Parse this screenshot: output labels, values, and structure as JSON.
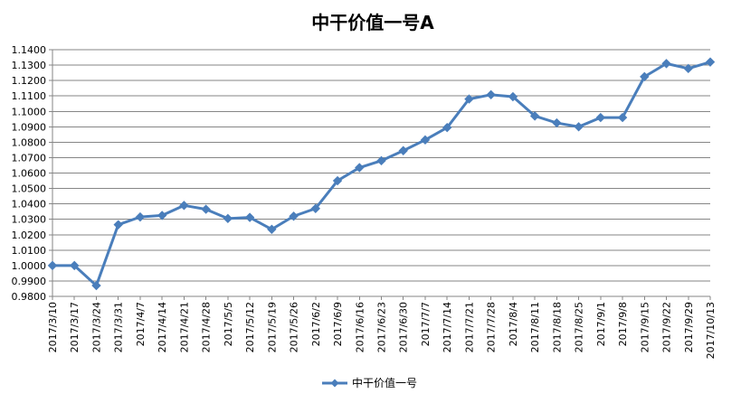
{
  "chart_data": {
    "type": "line",
    "title": "中干价值一号A",
    "xlabel": "",
    "ylabel": "",
    "categories": [
      "2017/3/10",
      "2017/3/17",
      "2017/3/24",
      "2017/3/31",
      "2017/4/7",
      "2017/4/14",
      "2017/4/21",
      "2017/4/28",
      "2017/5/5",
      "2017/5/12",
      "2017/5/19",
      "2017/5/26",
      "2017/6/2",
      "2017/6/9",
      "2017/6/16",
      "2017/6/23",
      "2017/6/30",
      "2017/7/7",
      "2017/7/14",
      "2017/7/21",
      "2017/7/28",
      "2017/8/4",
      "2017/8/11",
      "2017/8/18",
      "2017/8/25",
      "2017/9/1",
      "2017/9/8",
      "2017/9/15",
      "2017/9/22",
      "2017/9/29",
      "2017/10/13"
    ],
    "series": [
      {
        "name": "中干价值一号",
        "color": "#4a7ebb",
        "values": [
          1.0,
          1.0,
          0.987,
          1.0265,
          1.0315,
          1.0325,
          1.039,
          1.0365,
          1.0305,
          1.0312,
          1.0235,
          1.032,
          1.037,
          1.055,
          1.0635,
          1.068,
          1.0745,
          1.0815,
          1.0895,
          1.108,
          1.1108,
          1.1095,
          1.097,
          1.0925,
          1.09,
          1.096,
          1.096,
          1.1225,
          1.131,
          1.1278,
          1.132
        ]
      }
    ],
    "ylim": [
      0.98,
      1.14
    ],
    "yticks": [
      0.98,
      0.99,
      1.0,
      1.01,
      1.02,
      1.03,
      1.04,
      1.05,
      1.06,
      1.07,
      1.08,
      1.09,
      1.1,
      1.11,
      1.12,
      1.13,
      1.14
    ],
    "y_tick_decimals": 4,
    "grid": true,
    "legend_position": "bottom",
    "colors": {
      "line": "#4a7ebb",
      "grid": "#868686",
      "axis": "#868686"
    }
  }
}
